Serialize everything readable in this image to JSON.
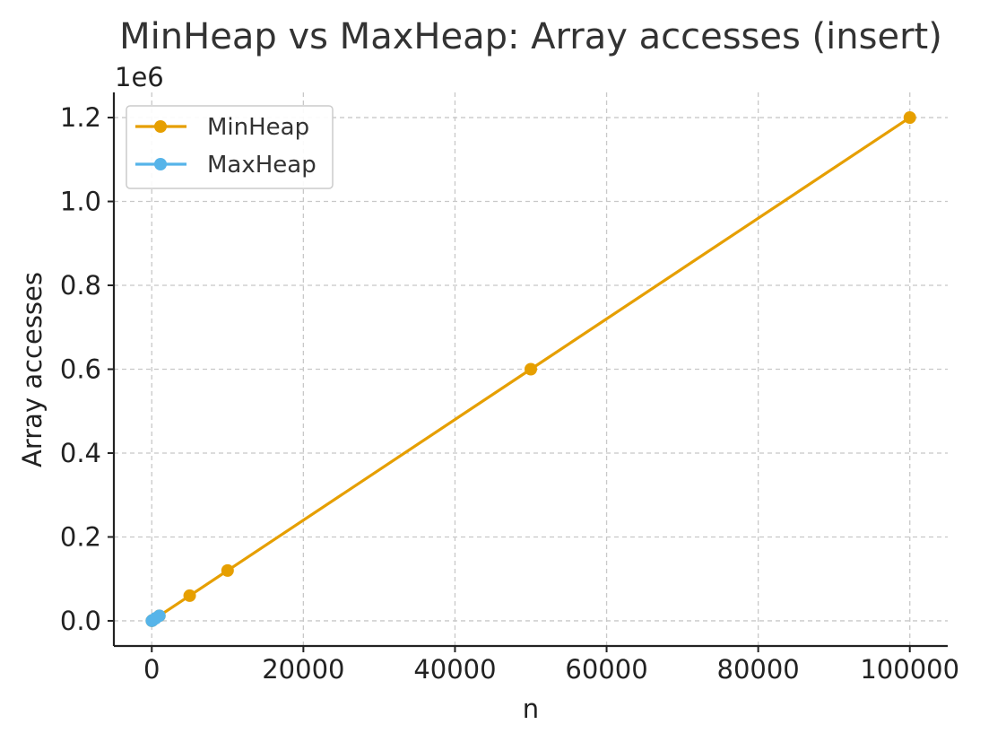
{
  "chart_data": {
    "type": "line",
    "title": "MinHeap vs MaxHeap: Array accesses (insert)",
    "xlabel": "n",
    "ylabel": "Array accesses",
    "y_offset_label": "1e6",
    "xlim": [
      -5000,
      105000
    ],
    "ylim": [
      -60000,
      1260000
    ],
    "x_ticks": [
      0,
      20000,
      40000,
      60000,
      80000,
      100000
    ],
    "x_tick_labels": [
      "0",
      "20000",
      "40000",
      "60000",
      "80000",
      "100000"
    ],
    "y_ticks": [
      0,
      200000,
      400000,
      600000,
      800000,
      1000000,
      1200000
    ],
    "y_tick_labels": [
      "0.0",
      "0.2",
      "0.4",
      "0.6",
      "0.8",
      "1.0",
      "1.2"
    ],
    "grid": true,
    "legend_position": "top-left",
    "series": [
      {
        "name": "MinHeap",
        "color": "#E69F00",
        "marker": "circle",
        "x": [
          10,
          100,
          1000,
          5000,
          10000,
          50000,
          100000
        ],
        "y": [
          120,
          1200,
          12000,
          60000,
          120000,
          600000,
          1200000
        ]
      },
      {
        "name": "MaxHeap",
        "color": "#56B4E9",
        "marker": "circle",
        "x": [
          10,
          100,
          500,
          1000
        ],
        "y": [
          120,
          1200,
          6000,
          12000
        ]
      }
    ]
  }
}
